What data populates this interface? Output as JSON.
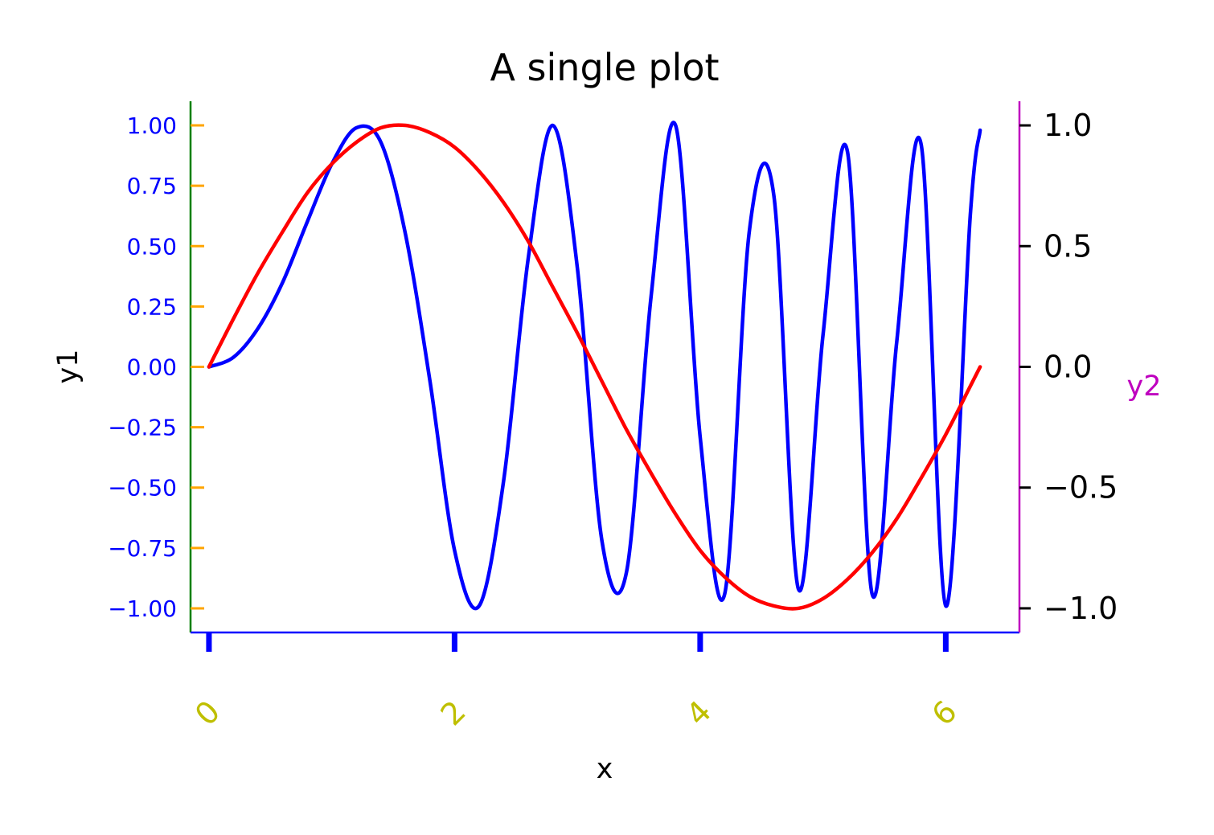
{
  "chart_data": {
    "type": "line",
    "title": "A single plot",
    "xlabel": "x",
    "ylabel": "y1",
    "y2label": "y2",
    "xlim": [
      -0.15,
      6.6
    ],
    "ylim": [
      -1.1,
      1.1
    ],
    "y2lim": [
      -1.1,
      1.1
    ],
    "x_ticks": [
      0,
      2,
      4,
      6
    ],
    "x_tick_labels": [
      "0",
      "2",
      "4",
      "6"
    ],
    "y_ticks": [
      1.0,
      0.75,
      0.5,
      0.25,
      0.0,
      -0.25,
      -0.5,
      -0.75,
      -1.0
    ],
    "y_tick_labels": [
      "1.00",
      "0.75",
      "0.50",
      "0.25",
      "0.00",
      "−0.25",
      "−0.50",
      "−0.75",
      "−1.00"
    ],
    "y2_ticks": [
      1.0,
      0.5,
      0.0,
      -0.5,
      -1.0
    ],
    "y2_tick_labels": [
      "1.0",
      "0.5",
      "0.0",
      "−0.5",
      "−1.0"
    ],
    "grid": false,
    "series": [
      {
        "axis": "y1",
        "color": "#0000ff",
        "x": [
          0.0,
          0.2,
          0.4,
          0.6,
          0.8,
          1.0,
          1.2,
          1.4,
          1.6,
          1.8,
          2.0,
          2.2,
          2.4,
          2.6,
          2.8,
          3.0,
          3.2,
          3.4,
          3.6,
          3.8,
          4.0,
          4.2,
          4.4,
          4.6,
          4.8,
          5.0,
          5.2,
          5.4,
          5.6,
          5.8,
          6.0,
          6.2,
          6.28
        ],
        "y": [
          0.0,
          0.04,
          0.16,
          0.35,
          0.6,
          0.84,
          0.99,
          0.93,
          0.55,
          -0.06,
          -0.76,
          -0.99,
          -0.47,
          0.45,
          1.0,
          0.41,
          -0.72,
          -0.85,
          0.29,
          1.0,
          -0.29,
          -0.94,
          0.56,
          0.71,
          -0.92,
          0.13,
          0.89,
          -0.94,
          0.1,
          0.92,
          -0.99,
          0.63,
          0.98
        ]
      },
      {
        "axis": "y2",
        "color": "#ff0000",
        "x": [
          0.0,
          0.2,
          0.4,
          0.6,
          0.8,
          1.0,
          1.2,
          1.4,
          1.6,
          1.8,
          2.0,
          2.2,
          2.4,
          2.6,
          2.8,
          3.0,
          3.2,
          3.4,
          3.6,
          3.8,
          4.0,
          4.2,
          4.4,
          4.6,
          4.8,
          5.0,
          5.2,
          5.4,
          5.6,
          5.8,
          6.0,
          6.2,
          6.28
        ],
        "y": [
          0.0,
          0.2,
          0.39,
          0.56,
          0.72,
          0.84,
          0.93,
          0.99,
          1.0,
          0.97,
          0.91,
          0.81,
          0.68,
          0.52,
          0.33,
          0.14,
          -0.06,
          -0.26,
          -0.44,
          -0.61,
          -0.76,
          -0.87,
          -0.95,
          -0.99,
          -1.0,
          -0.96,
          -0.88,
          -0.77,
          -0.63,
          -0.46,
          -0.28,
          -0.08,
          0.0
        ]
      }
    ]
  },
  "colors": {
    "left_spine": "#008000",
    "left_ticks": "#ffa500",
    "left_tick_labels": "#0000ff",
    "bottom_spine": "#0000ff",
    "bottom_ticks": "#0000ff",
    "bottom_tick_labels": "#bfbf00",
    "right_spine": "#bf00bf",
    "right_ticks": "#000000",
    "right_tick_labels": "#000000",
    "y2_label": "#bf00bf",
    "text": "#000000"
  }
}
